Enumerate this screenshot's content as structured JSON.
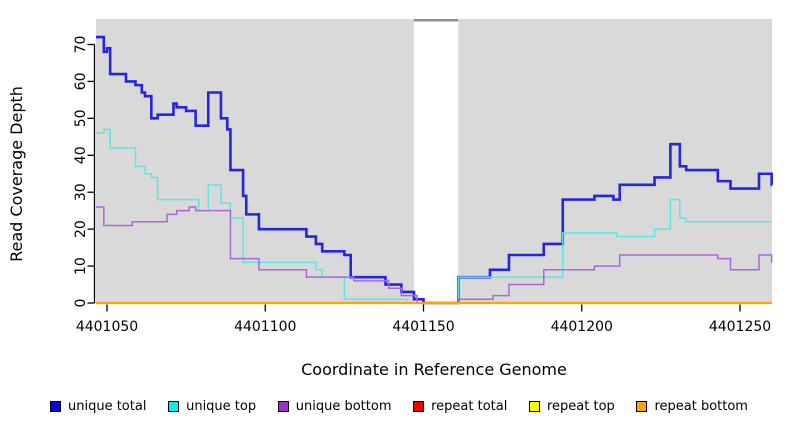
{
  "chart_data": {
    "type": "line",
    "subtype": "step-coverage-plot",
    "title": "",
    "xlabel": "Coordinate in Reference Genome",
    "ylabel": "Read Coverage Depth",
    "xlim": [
      4401046.5,
      4401260.5
    ],
    "ylim": [
      0,
      77
    ],
    "x_ticks": [
      4401050,
      4401100,
      4401150,
      4401200,
      4401250
    ],
    "x_tick_labels": [
      "4401050",
      "4401100",
      "4401150",
      "4401200",
      "4401250"
    ],
    "y_ticks": [
      0,
      10,
      20,
      30,
      40,
      50,
      60,
      70
    ],
    "y_tick_labels": [
      "0",
      "10",
      "20",
      "30",
      "40",
      "50",
      "60",
      "70"
    ],
    "grid": false,
    "legend_position": "bottom",
    "plot_bg": "#d9d9d9",
    "axis_color": "#000000",
    "masked_region": {
      "x_start": 4401147,
      "x_end": 4401161,
      "fill": "#ffffff",
      "top_border": "#8f8f8f"
    },
    "series": [
      {
        "name": "unique total",
        "color": "#2525e0",
        "legend_color": "#0000f0",
        "width": 2.6,
        "steps": [
          [
            4401046,
            72
          ],
          [
            4401049,
            68
          ],
          [
            4401050,
            69
          ],
          [
            4401051,
            62
          ],
          [
            4401056,
            60
          ],
          [
            4401059,
            59
          ],
          [
            4401061,
            57
          ],
          [
            4401062,
            56
          ],
          [
            4401064,
            50
          ],
          [
            4401066,
            51
          ],
          [
            4401071,
            54
          ],
          [
            4401072,
            53
          ],
          [
            4401075,
            52
          ],
          [
            4401078,
            48
          ],
          [
            4401082,
            57
          ],
          [
            4401086,
            50
          ],
          [
            4401088,
            47
          ],
          [
            4401089,
            36
          ],
          [
            4401093,
            29
          ],
          [
            4401094,
            24
          ],
          [
            4401098,
            20
          ],
          [
            4401113,
            18
          ],
          [
            4401116,
            16
          ],
          [
            4401118,
            14
          ],
          [
            4401125,
            13
          ],
          [
            4401127,
            7
          ],
          [
            4401138,
            5
          ],
          [
            4401143,
            3
          ],
          [
            4401147,
            1
          ],
          [
            4401150,
            0
          ],
          [
            4401161,
            7
          ],
          [
            4401171,
            9
          ],
          [
            4401177,
            13
          ],
          [
            4401188,
            16
          ],
          [
            4401194,
            28
          ],
          [
            4401204,
            29
          ],
          [
            4401210,
            28
          ],
          [
            4401212,
            32
          ],
          [
            4401223,
            34
          ],
          [
            4401228,
            43
          ],
          [
            4401231,
            37
          ],
          [
            4401233,
            36
          ],
          [
            4401243,
            33
          ],
          [
            4401247,
            31
          ],
          [
            4401256,
            35
          ],
          [
            4401260,
            32
          ]
        ]
      },
      {
        "name": "unique top",
        "color": "#5ce6e6",
        "legend_color": "#00f0f0",
        "width": 1.5,
        "steps": [
          [
            4401046,
            46
          ],
          [
            4401049,
            47
          ],
          [
            4401051,
            42
          ],
          [
            4401059,
            37
          ],
          [
            4401062,
            35
          ],
          [
            4401064,
            34
          ],
          [
            4401066,
            28
          ],
          [
            4401079,
            25
          ],
          [
            4401082,
            32
          ],
          [
            4401086,
            27
          ],
          [
            4401089,
            23
          ],
          [
            4401093,
            11
          ],
          [
            4401116,
            9
          ],
          [
            4401118,
            7
          ],
          [
            4401125,
            1
          ],
          [
            4401145,
            0
          ],
          [
            4401161,
            7
          ],
          [
            4401194,
            19
          ],
          [
            4401211,
            18
          ],
          [
            4401223,
            20
          ],
          [
            4401228,
            28
          ],
          [
            4401231,
            23
          ],
          [
            4401233,
            22
          ]
        ]
      },
      {
        "name": "unique bottom",
        "color": "#ac68d8",
        "legend_color": "#9932cc",
        "width": 1.5,
        "steps": [
          [
            4401046,
            26
          ],
          [
            4401049,
            21
          ],
          [
            4401058,
            22
          ],
          [
            4401069,
            24
          ],
          [
            4401072,
            25
          ],
          [
            4401076,
            26
          ],
          [
            4401078,
            25
          ],
          [
            4401089,
            12
          ],
          [
            4401098,
            9
          ],
          [
            4401113,
            7
          ],
          [
            4401128,
            6
          ],
          [
            4401139,
            4
          ],
          [
            4401143,
            2
          ],
          [
            4401148,
            0
          ],
          [
            4401161,
            1
          ],
          [
            4401172,
            2
          ],
          [
            4401177,
            5
          ],
          [
            4401188,
            9
          ],
          [
            4401204,
            10
          ],
          [
            4401212,
            13
          ],
          [
            4401243,
            12
          ],
          [
            4401247,
            9
          ],
          [
            4401256,
            13
          ],
          [
            4401260,
            11
          ]
        ]
      },
      {
        "name": "repeat total",
        "color": "#e00000",
        "legend_color": "#f00000",
        "width": 1.5,
        "steps": [
          [
            4401046,
            0
          ]
        ]
      },
      {
        "name": "repeat top",
        "color": "#f5f500",
        "legend_color": "#ffff00",
        "width": 1.5,
        "steps": [
          [
            4401046,
            0
          ]
        ]
      },
      {
        "name": "repeat bottom",
        "color": "#ffa500",
        "legend_color": "#ffa500",
        "width": 2.2,
        "steps": [
          [
            4401046,
            0
          ]
        ]
      }
    ],
    "legend": [
      {
        "label": "unique total",
        "color": "#0000f0"
      },
      {
        "label": "unique top",
        "color": "#00f0f0"
      },
      {
        "label": "unique bottom",
        "color": "#9932cc"
      },
      {
        "label": "repeat total",
        "color": "#f00000"
      },
      {
        "label": "repeat top",
        "color": "#ffff00"
      },
      {
        "label": "repeat bottom",
        "color": "#ffa500"
      }
    ]
  }
}
